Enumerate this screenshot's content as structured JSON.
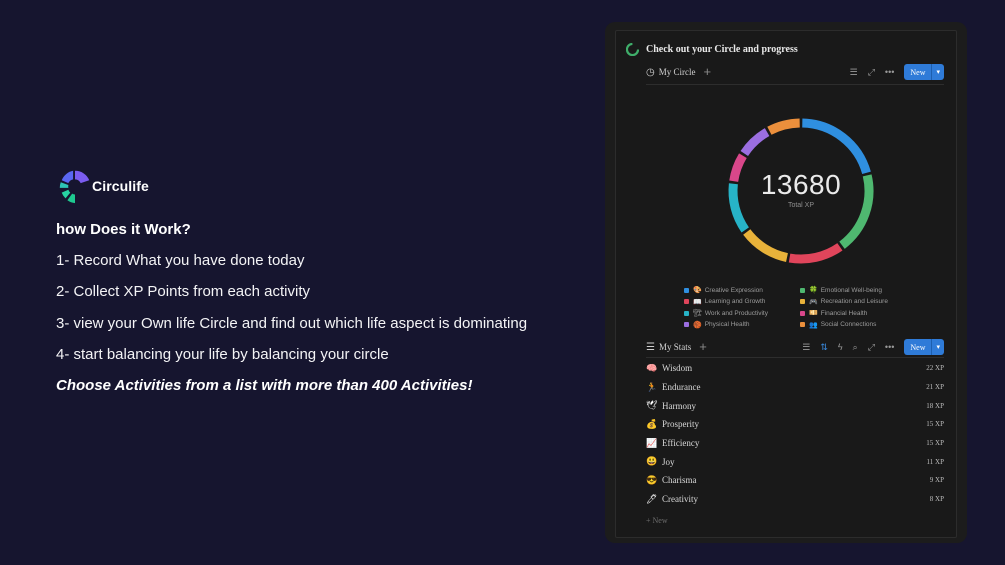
{
  "brand": {
    "name": "Circulife"
  },
  "promo": {
    "headline": "how Does it Work?",
    "steps": [
      "1- Record What you have done today",
      "2- Collect XP Points from each activity",
      "3- view your Own life Circle and find out which life aspect is dominating",
      "4- start balancing your life by balancing your circle"
    ],
    "tagline": "Choose Activities from a list with more than 400 Activities!"
  },
  "panel": {
    "title": "Check out your Circle and progress",
    "circle_view": {
      "label": "My Circle",
      "new_label": "New"
    },
    "stats_view": {
      "label": "My Stats",
      "new_label": "New"
    },
    "total_xp": "13680",
    "total_label": "Total XP",
    "new_row_label": "New"
  },
  "legend": [
    {
      "label": "Creative Expression",
      "emoji": "🎨",
      "color": "#2f8fe0"
    },
    {
      "label": "Emotional Well-being",
      "emoji": "🍀",
      "color": "#4fb870"
    },
    {
      "label": "Learning and Growth",
      "emoji": "📖",
      "color": "#e0455b"
    },
    {
      "label": "Recreation and Leisure",
      "emoji": "🎮",
      "color": "#e8b23a"
    },
    {
      "label": "Work and Productivity",
      "emoji": "🏗",
      "color": "#27b3c7"
    },
    {
      "label": "Financial Health",
      "emoji": "💴",
      "color": "#d9478a"
    },
    {
      "label": "Physical Health",
      "emoji": "🏀",
      "color": "#9b6ee0"
    },
    {
      "label": "Social Connections",
      "emoji": "👥",
      "color": "#eb8f3c"
    }
  ],
  "donut_segments": [
    {
      "value": 21,
      "color": "#2f8fe0"
    },
    {
      "value": 19,
      "color": "#4fb870"
    },
    {
      "value": 13,
      "color": "#e0455b"
    },
    {
      "value": 12,
      "color": "#e8b23a"
    },
    {
      "value": 12,
      "color": "#27b3c7"
    },
    {
      "value": 7,
      "color": "#d9478a"
    },
    {
      "value": 8,
      "color": "#9b6ee0"
    },
    {
      "value": 8,
      "color": "#eb8f3c"
    }
  ],
  "stats": [
    {
      "emoji": "🧠",
      "name": "Wisdom",
      "xp": "22 XP"
    },
    {
      "emoji": "🏃",
      "name": "Endurance",
      "xp": "21 XP"
    },
    {
      "emoji": "🕊",
      "name": "Harmony",
      "xp": "18 XP"
    },
    {
      "emoji": "💰",
      "name": "Prosperity",
      "xp": "15 XP"
    },
    {
      "emoji": "📈",
      "name": "Efficiency",
      "xp": "15 XP"
    },
    {
      "emoji": "😃",
      "name": "Joy",
      "xp": "11 XP"
    },
    {
      "emoji": "😎",
      "name": "Charisma",
      "xp": "9 XP"
    },
    {
      "emoji": "🖊",
      "name": "Creativity",
      "xp": "8 XP"
    }
  ]
}
